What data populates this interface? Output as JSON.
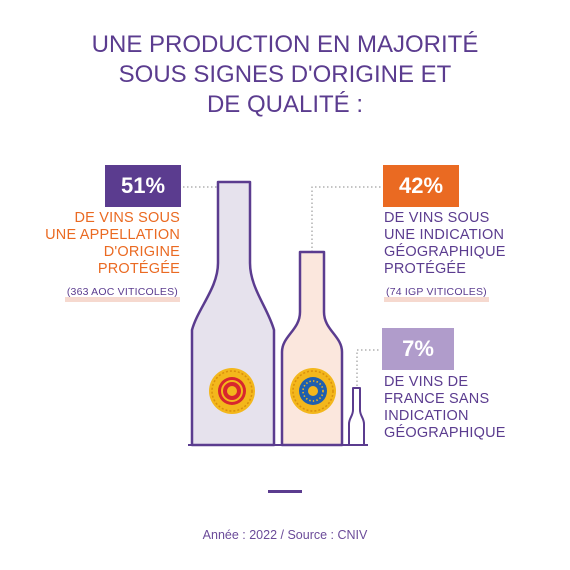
{
  "title_lines": [
    "UNE PRODUCTION EN MAJORITÉ",
    "SOUS SIGNES D'ORIGINE ET",
    "DE QUALITÉ :"
  ],
  "colors": {
    "aop": "#5b3c8f",
    "igp": "#ea6a22",
    "vsig": "#b09ccb",
    "bottle_outline": "#5b3c8f",
    "aop_fill": "#e6e2ed",
    "igp_fill": "#fbe7dd",
    "title": "#5b3c8f"
  },
  "icons": [
    "aop-seal-icon",
    "igp-seal-icon"
  ],
  "segments": [
    {
      "percent": "51%",
      "lines": [
        "DE VINS SOUS",
        "UNE APPELLATION",
        "D'ORIGINE",
        "PROTÉGÉE"
      ],
      "note": "(363 AOC VITICOLES)"
    },
    {
      "percent": "42%",
      "lines": [
        "DE VINS SOUS",
        "UNE INDICATION",
        "GÉOGRAPHIQUE",
        "PROTÉGÉE"
      ],
      "note": "(74 IGP VITICOLES)"
    },
    {
      "percent": "7%",
      "lines": [
        "DE VINS DE",
        "FRANCE SANS",
        "INDICATION",
        "GÉOGRAPHIQUE"
      ],
      "note": ""
    }
  ],
  "source": "Année : 2022 / Source : CNIV",
  "chart_data": {
    "type": "bar",
    "categories": [
      "AOP",
      "IGP",
      "Vins de France sans IG"
    ],
    "values": [
      51,
      42,
      7
    ],
    "unit": "%",
    "year": 2022,
    "source": "CNIV"
  }
}
